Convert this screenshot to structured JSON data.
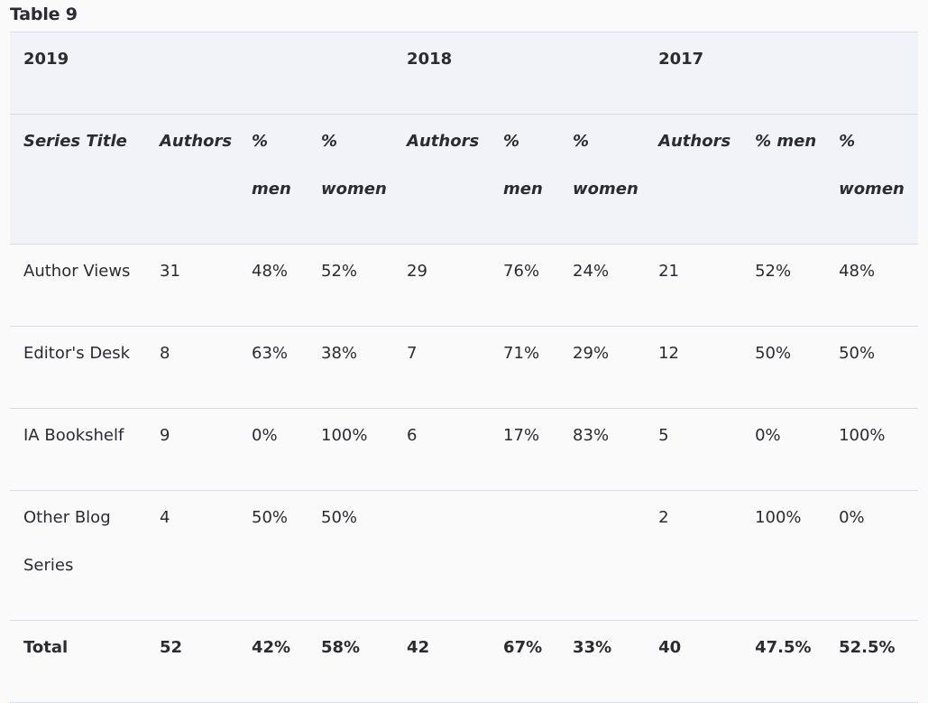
{
  "caption": "Table 9",
  "years": [
    "2019",
    "2018",
    "2017"
  ],
  "headers": [
    "Series Title",
    "Authors",
    "% men",
    "% women",
    "Authors",
    "% men",
    "% women",
    "Authors",
    "% men",
    "% women"
  ],
  "rows": [
    [
      "Author Views",
      "31",
      "48%",
      "52%",
      "29",
      "76%",
      "24%",
      "21",
      "52%",
      "48%"
    ],
    [
      "Editor's Desk",
      "8",
      "63%",
      "38%",
      "7",
      "71%",
      "29%",
      "12",
      "50%",
      "50%"
    ],
    [
      "IA Bookshelf",
      "9",
      "0%",
      "100%",
      "6",
      "17%",
      "83%",
      "5",
      "0%",
      "100%"
    ],
    [
      "Other Blog Series",
      "4",
      "50%",
      "50%",
      "",
      "",
      "",
      "2",
      "100%",
      "0%"
    ]
  ],
  "total": [
    "Total",
    "52",
    "42%",
    "58%",
    "42",
    "67%",
    "33%",
    "40",
    "47.5%",
    "52.5%"
  ]
}
